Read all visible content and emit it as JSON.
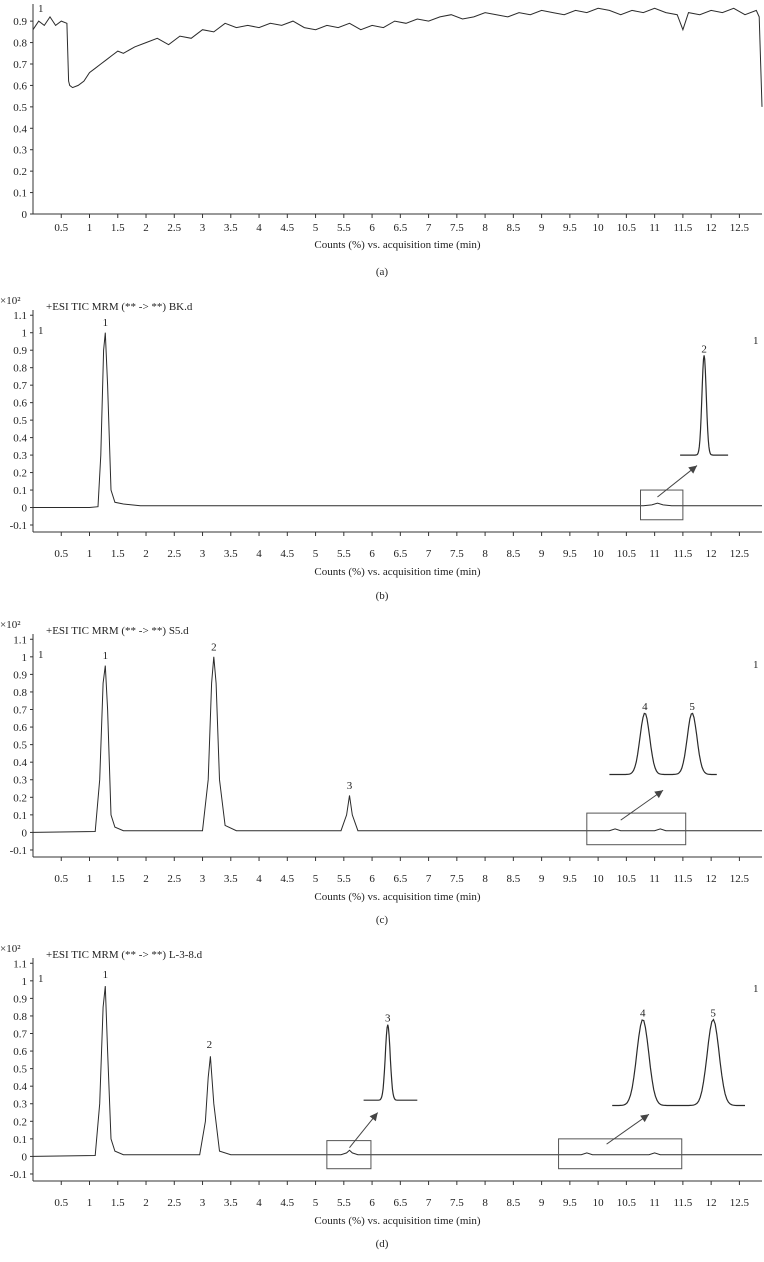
{
  "colors": {
    "line": "#2b2b2b",
    "axis": "#333333"
  },
  "chart_data": [
    {
      "id": "a",
      "type": "line",
      "caption": "(a)",
      "header": "",
      "multiplier": "",
      "corner_left": "1",
      "corner_right": "",
      "xlabel": "Counts (%) vs. acquisition time (min)",
      "xlim": [
        0,
        12.9
      ],
      "ylim": [
        0,
        0.98
      ],
      "xticks": [
        "0.5",
        "1",
        "1.5",
        "2",
        "2.5",
        "3",
        "3.5",
        "4",
        "4.5",
        "5",
        "5.5",
        "6",
        "6.5",
        "7",
        "7.5",
        "8",
        "8.5",
        "9",
        "9.5",
        "10",
        "10.5",
        "11",
        "11.5",
        "12",
        "12.5"
      ],
      "yticks": [
        "0",
        "0.1",
        "0.2",
        "0.3",
        "0.4",
        "0.5",
        "0.6",
        "0.7",
        "0.8",
        "0.9"
      ],
      "series": [
        {
          "x": [
            0.0,
            0.1,
            0.2,
            0.3,
            0.4,
            0.5,
            0.6,
            0.63,
            0.65,
            0.7,
            0.8,
            0.9,
            1.0,
            1.1,
            1.2,
            1.3,
            1.4,
            1.5,
            1.6,
            1.8,
            2.0,
            2.2,
            2.4,
            2.6,
            2.8,
            3.0,
            3.2,
            3.4,
            3.6,
            3.8,
            4.0,
            4.2,
            4.4,
            4.6,
            4.8,
            5.0,
            5.2,
            5.4,
            5.6,
            5.8,
            6.0,
            6.2,
            6.4,
            6.6,
            6.8,
            7.0,
            7.2,
            7.4,
            7.6,
            7.8,
            8.0,
            8.2,
            8.4,
            8.6,
            8.8,
            9.0,
            9.2,
            9.4,
            9.6,
            9.8,
            10.0,
            10.2,
            10.4,
            10.6,
            10.8,
            11.0,
            11.2,
            11.4,
            11.5,
            11.6,
            11.8,
            12.0,
            12.2,
            12.4,
            12.6,
            12.8,
            12.85,
            12.9
          ],
          "y": [
            0.86,
            0.9,
            0.88,
            0.92,
            0.88,
            0.9,
            0.89,
            0.62,
            0.6,
            0.59,
            0.6,
            0.62,
            0.66,
            0.68,
            0.7,
            0.72,
            0.74,
            0.76,
            0.75,
            0.78,
            0.8,
            0.82,
            0.79,
            0.83,
            0.82,
            0.86,
            0.85,
            0.89,
            0.87,
            0.88,
            0.87,
            0.89,
            0.88,
            0.9,
            0.87,
            0.86,
            0.88,
            0.87,
            0.89,
            0.86,
            0.88,
            0.87,
            0.9,
            0.89,
            0.91,
            0.9,
            0.92,
            0.93,
            0.91,
            0.92,
            0.94,
            0.93,
            0.92,
            0.94,
            0.93,
            0.95,
            0.94,
            0.93,
            0.95,
            0.94,
            0.96,
            0.95,
            0.93,
            0.95,
            0.94,
            0.96,
            0.94,
            0.93,
            0.86,
            0.94,
            0.93,
            0.95,
            0.94,
            0.96,
            0.93,
            0.95,
            0.92,
            0.5
          ]
        }
      ],
      "peaks": [],
      "boxes": [],
      "insets": []
    },
    {
      "id": "b",
      "type": "line",
      "caption": "(b)",
      "header": "+ESI TIC MRM (** -> **) BK.d",
      "multiplier": "×10²",
      "corner_left": "1",
      "corner_right": "1",
      "xlabel": "Counts (%) vs. acquisition time (min)",
      "xlim": [
        0,
        12.9
      ],
      "ylim": [
        -0.14,
        1.13
      ],
      "xticks": [
        "0.5",
        "1",
        "1.5",
        "2",
        "2.5",
        "3",
        "3.5",
        "4",
        "4.5",
        "5",
        "5.5",
        "6",
        "6.5",
        "7",
        "7.5",
        "8",
        "8.5",
        "9",
        "9.5",
        "10",
        "10.5",
        "11",
        "11.5",
        "12",
        "12.5"
      ],
      "yticks": [
        "-0.1",
        "0",
        "0.1",
        "0.2",
        "0.3",
        "0.4",
        "0.5",
        "0.6",
        "0.7",
        "0.8",
        "0.9",
        "1",
        "1.1"
      ],
      "series": [
        {
          "x": [
            0.0,
            1.0,
            1.15,
            1.2,
            1.25,
            1.28,
            1.32,
            1.38,
            1.45,
            1.6,
            1.9,
            3.0,
            6.0,
            10.8,
            10.95,
            11.05,
            11.15,
            11.3,
            12.9
          ],
          "y": [
            0.0,
            0.0,
            0.005,
            0.3,
            0.9,
            1.0,
            0.7,
            0.1,
            0.03,
            0.02,
            0.01,
            0.01,
            0.01,
            0.01,
            0.015,
            0.025,
            0.015,
            0.01,
            0.01
          ]
        }
      ],
      "peaks": [
        {
          "label": "1",
          "x": 1.28,
          "y": 1.02
        }
      ],
      "boxes": [
        {
          "x0": 10.75,
          "x1": 11.5,
          "y0": -0.07,
          "y1": 0.1
        }
      ],
      "insets": [
        {
          "x0": 11.45,
          "x1": 12.3,
          "y_base": 0.3,
          "y_top": 0.87,
          "arrow": [
            11.05,
            0.06,
            11.75,
            0.24
          ],
          "peaks": [
            {
              "label": "2",
              "pos": 0.5
            }
          ]
        }
      ]
    },
    {
      "id": "c",
      "type": "line",
      "caption": "(c)",
      "header": "+ESI TIC MRM (** -> **) S5.d",
      "multiplier": "×10²",
      "corner_left": "1",
      "corner_right": "1",
      "xlabel": "Counts (%) vs. acquisition time (min)",
      "xlim": [
        0,
        12.9
      ],
      "ylim": [
        -0.14,
        1.13
      ],
      "xticks": [
        "0.5",
        "1",
        "1.5",
        "2",
        "2.5",
        "3",
        "3.5",
        "4",
        "4.5",
        "5",
        "5.5",
        "6",
        "6.5",
        "7",
        "7.5",
        "8",
        "8.5",
        "9",
        "9.5",
        "10",
        "10.5",
        "11",
        "11.5",
        "12",
        "12.5"
      ],
      "yticks": [
        "-0.1",
        "0",
        "0.1",
        "0.2",
        "0.3",
        "0.4",
        "0.5",
        "0.6",
        "0.7",
        "0.8",
        "0.9",
        "1",
        "1.1"
      ],
      "series": [
        {
          "x": [
            0.0,
            1.1,
            1.18,
            1.24,
            1.28,
            1.32,
            1.38,
            1.45,
            1.6,
            3.0,
            3.1,
            3.16,
            3.2,
            3.24,
            3.3,
            3.4,
            3.6,
            5.45,
            5.55,
            5.6,
            5.65,
            5.75,
            9.9,
            10.2,
            10.3,
            10.4,
            10.8,
            11.0,
            11.1,
            11.2,
            12.9
          ],
          "y": [
            0.0,
            0.005,
            0.3,
            0.85,
            0.95,
            0.7,
            0.1,
            0.03,
            0.01,
            0.01,
            0.3,
            0.85,
            1.0,
            0.85,
            0.3,
            0.04,
            0.01,
            0.01,
            0.1,
            0.21,
            0.1,
            0.01,
            0.01,
            0.01,
            0.02,
            0.01,
            0.01,
            0.01,
            0.02,
            0.01,
            0.01
          ]
        }
      ],
      "peaks": [
        {
          "label": "1",
          "x": 1.28,
          "y": 0.97
        },
        {
          "label": "2",
          "x": 3.2,
          "y": 1.02
        },
        {
          "label": "3",
          "x": 5.6,
          "y": 0.23
        }
      ],
      "boxes": [
        {
          "x0": 9.8,
          "x1": 11.55,
          "y0": -0.07,
          "y1": 0.11
        }
      ],
      "insets": [
        {
          "x0": 10.2,
          "x1": 12.1,
          "y_base": 0.33,
          "y_top": 0.68,
          "arrow": [
            10.4,
            0.07,
            11.15,
            0.24
          ],
          "peaks": [
            {
              "label": "4",
              "pos": 0.33
            },
            {
              "label": "5",
              "pos": 0.77
            }
          ]
        }
      ]
    },
    {
      "id": "d",
      "type": "line",
      "caption": "(d)",
      "header": "+ESI TIC MRM (** -> **) L-3-8.d",
      "multiplier": "×10²",
      "corner_left": "1",
      "corner_right": "1",
      "xlabel": "Counts (%) vs. acquisition time (min)",
      "xlim": [
        0,
        12.9
      ],
      "ylim": [
        -0.14,
        1.13
      ],
      "xticks": [
        "0.5",
        "1",
        "1.5",
        "2",
        "2.5",
        "3",
        "3.5",
        "4",
        "4.5",
        "5",
        "5.5",
        "6",
        "6.5",
        "7",
        "7.5",
        "8",
        "8.5",
        "9",
        "9.5",
        "10",
        "10.5",
        "11",
        "11.5",
        "12",
        "12.5"
      ],
      "yticks": [
        "-0.1",
        "0",
        "0.1",
        "0.2",
        "0.3",
        "0.4",
        "0.5",
        "0.6",
        "0.7",
        "0.8",
        "0.9",
        "1",
        "1.1"
      ],
      "series": [
        {
          "x": [
            0.0,
            1.1,
            1.18,
            1.24,
            1.28,
            1.32,
            1.38,
            1.45,
            1.6,
            2.95,
            3.05,
            3.1,
            3.14,
            3.2,
            3.3,
            3.5,
            5.45,
            5.55,
            5.6,
            5.65,
            5.75,
            9.5,
            9.7,
            9.8,
            9.9,
            10.9,
            11.0,
            11.1,
            12.9
          ],
          "y": [
            0.0,
            0.005,
            0.3,
            0.85,
            0.97,
            0.6,
            0.1,
            0.03,
            0.01,
            0.01,
            0.2,
            0.45,
            0.57,
            0.3,
            0.03,
            0.01,
            0.01,
            0.02,
            0.035,
            0.02,
            0.01,
            0.01,
            0.01,
            0.02,
            0.01,
            0.01,
            0.02,
            0.01,
            0.01
          ]
        }
      ],
      "peaks": [
        {
          "label": "1",
          "x": 1.28,
          "y": 1.0
        },
        {
          "label": "2",
          "x": 3.12,
          "y": 0.6
        }
      ],
      "boxes": [
        {
          "x0": 5.2,
          "x1": 5.98,
          "y0": -0.07,
          "y1": 0.09
        },
        {
          "x0": 9.3,
          "x1": 11.48,
          "y0": -0.07,
          "y1": 0.1
        }
      ],
      "insets": [
        {
          "x0": 5.85,
          "x1": 6.8,
          "y_base": 0.32,
          "y_top": 0.75,
          "arrow": [
            5.6,
            0.05,
            6.1,
            0.25
          ],
          "peaks": [
            {
              "label": "3",
              "pos": 0.45
            }
          ]
        },
        {
          "x0": 10.25,
          "x1": 12.6,
          "y_base": 0.29,
          "y_top": 0.78,
          "arrow": [
            10.15,
            0.07,
            10.9,
            0.24
          ],
          "peaks": [
            {
              "label": "4",
              "pos": 0.23
            },
            {
              "label": "5",
              "pos": 0.76
            }
          ]
        }
      ]
    }
  ]
}
